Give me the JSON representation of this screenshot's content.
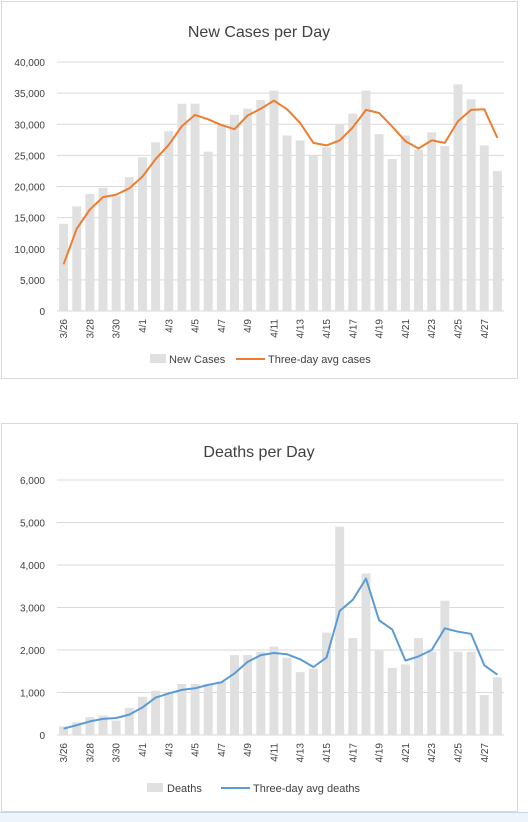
{
  "chart_data": [
    {
      "type": "bar",
      "title": "New Cases per Day",
      "categories": [
        "3/26",
        "3/27",
        "3/28",
        "3/29",
        "3/30",
        "3/31",
        "4/1",
        "4/2",
        "4/3",
        "4/4",
        "4/5",
        "4/6",
        "4/7",
        "4/8",
        "4/9",
        "4/10",
        "4/11",
        "4/12",
        "4/13",
        "4/14",
        "4/15",
        "4/16",
        "4/17",
        "4/18",
        "4/19",
        "4/20",
        "4/21",
        "4/22",
        "4/23",
        "4/24",
        "4/25",
        "4/26",
        "4/27",
        "4/28"
      ],
      "tick_labels": [
        "3/26",
        "3/28",
        "3/30",
        "4/1",
        "4/3",
        "4/5",
        "4/7",
        "4/9",
        "4/11",
        "4/13",
        "4/15",
        "4/17",
        "4/19",
        "4/21",
        "4/23",
        "4/25",
        "4/27"
      ],
      "ylim": [
        0,
        40000
      ],
      "yticks": [
        0,
        5000,
        10000,
        15000,
        20000,
        25000,
        30000,
        35000,
        40000
      ],
      "ytick_labels": [
        "0",
        "5,000",
        "10,000",
        "15,000",
        "20,000",
        "25,000",
        "30,000",
        "35,000",
        "40,000"
      ],
      "series": [
        {
          "name": "New Cases",
          "type": "bar",
          "color": "#e0e0e0",
          "values": [
            14000,
            16800,
            18800,
            19800,
            18500,
            21500,
            24700,
            27100,
            28900,
            33300,
            33300,
            25600,
            30000,
            31500,
            32500,
            33900,
            35400,
            28200,
            27400,
            25000,
            26300,
            30000,
            31700,
            35400,
            28400,
            24400,
            28200,
            25900,
            28700,
            26500,
            36400,
            34000,
            26600,
            22500
          ]
        },
        {
          "name": "Three-day avg cases",
          "type": "line",
          "color": "#ed7d31",
          "values": [
            7500,
            13200,
            16300,
            18300,
            18700,
            19700,
            21600,
            24400,
            26700,
            29700,
            31500,
            30800,
            29900,
            29200,
            31400,
            32500,
            33800,
            32400,
            30200,
            27000,
            26600,
            27400,
            29500,
            32300,
            31800,
            29600,
            27300,
            26100,
            27400,
            27000,
            30500,
            32300,
            32400,
            27800
          ]
        }
      ],
      "legend_position": "bottom"
    },
    {
      "type": "bar",
      "title": "Deaths per Day",
      "categories": [
        "3/26",
        "3/27",
        "3/28",
        "3/29",
        "3/30",
        "3/31",
        "4/1",
        "4/2",
        "4/3",
        "4/4",
        "4/5",
        "4/6",
        "4/7",
        "4/8",
        "4/9",
        "4/10",
        "4/11",
        "4/12",
        "4/13",
        "4/14",
        "4/15",
        "4/16",
        "4/17",
        "4/18",
        "4/19",
        "4/20",
        "4/21",
        "4/22",
        "4/23",
        "4/24",
        "4/25",
        "4/26",
        "4/27",
        "4/28"
      ],
      "tick_labels": [
        "3/26",
        "3/28",
        "3/30",
        "4/1",
        "4/3",
        "4/5",
        "4/7",
        "4/9",
        "4/11",
        "4/13",
        "4/15",
        "4/17",
        "4/19",
        "4/21",
        "4/23",
        "4/25",
        "4/27"
      ],
      "ylim": [
        0,
        6000
      ],
      "yticks": [
        0,
        1000,
        2000,
        3000,
        4000,
        5000,
        6000
      ],
      "ytick_labels": [
        "0",
        "1,000",
        "2,000",
        "3,000",
        "4,000",
        "5,000",
        "6,000"
      ],
      "series": [
        {
          "name": "Deaths",
          "type": "bar",
          "color": "#e0e0e0",
          "values": [
            200,
            300,
            420,
            460,
            340,
            640,
            900,
            1040,
            1000,
            1200,
            1200,
            1200,
            1260,
            1880,
            1880,
            1960,
            2080,
            1820,
            1480,
            1560,
            2410,
            4900,
            2280,
            3800,
            2000,
            1580,
            1660,
            2280,
            1960,
            3160,
            1960,
            1960,
            940,
            1360
          ]
        },
        {
          "name": "Three-day avg deaths",
          "type": "line",
          "color": "#5b9bd5",
          "values": [
            150,
            230,
            320,
            380,
            400,
            480,
            650,
            880,
            980,
            1060,
            1100,
            1180,
            1240,
            1450,
            1720,
            1880,
            1930,
            1900,
            1780,
            1600,
            1820,
            2920,
            3180,
            3680,
            2700,
            2480,
            1750,
            1850,
            2000,
            2510,
            2430,
            2380,
            1640,
            1420
          ]
        }
      ],
      "legend_position": "bottom"
    }
  ]
}
